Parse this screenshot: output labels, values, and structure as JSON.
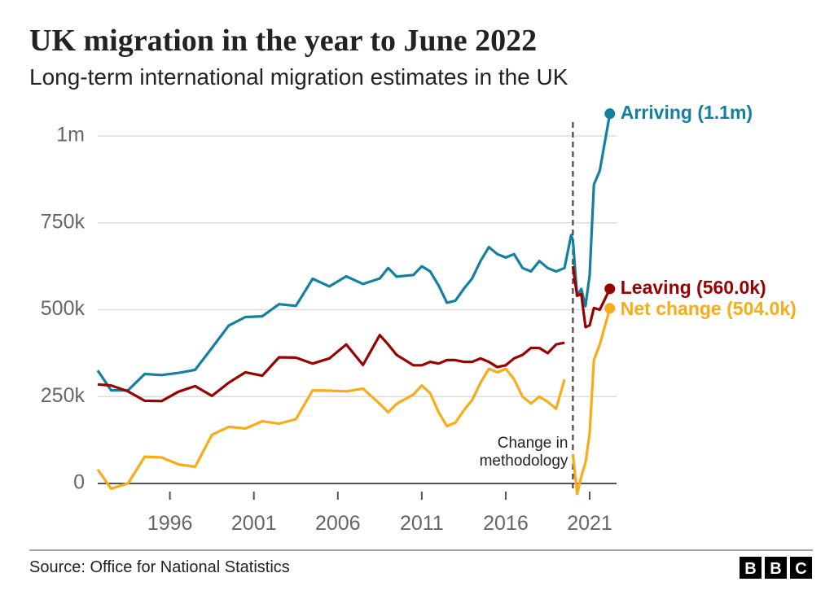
{
  "chart_data": {
    "type": "line",
    "title": "UK migration in the year to June 2022",
    "subtitle": "Long-term international migration estimates in the UK",
    "source": "Source: Office for National Statistics",
    "logo": [
      "B",
      "B",
      "C"
    ],
    "annotation": [
      "Change in",
      "methodology"
    ],
    "methodology_change_x": 2020.0,
    "xlim": [
      1991.7,
      2022.6
    ],
    "xticks": [
      1996,
      2001,
      2006,
      2011,
      2016,
      2021
    ],
    "ylim": [
      0,
      1000000
    ],
    "yticks": [
      {
        "value": 0,
        "label": "0"
      },
      {
        "value": 250000,
        "label": "250k"
      },
      {
        "value": 500000,
        "label": "500k"
      },
      {
        "value": 750000,
        "label": "750k"
      },
      {
        "value": 1000000,
        "label": "1m"
      }
    ],
    "grid": true,
    "x": [
      1991.7,
      1992.5,
      1993.5,
      1994.5,
      1995.5,
      1996.5,
      1997.5,
      1998.5,
      1999.5,
      2000.5,
      2001.5,
      2002.5,
      2003.5,
      2004.5,
      2005.5,
      2006.5,
      2007.5,
      2008.5,
      2009.0,
      2009.5,
      2010.5,
      2011.0,
      2011.5,
      2012.0,
      2012.5,
      2013.0,
      2013.5,
      2014.0,
      2014.5,
      2015.0,
      2015.5,
      2016.0,
      2016.5,
      2017.0,
      2017.5,
      2018.0,
      2018.5,
      2019.0,
      2019.5,
      2019.9,
      2020.0,
      2020.25,
      2020.5,
      2020.75,
      2021.0,
      2021.25,
      2021.6,
      2022.2
    ],
    "series": [
      {
        "name": "Arriving (1.1m)",
        "color": "#1380a1",
        "values": [
          325000,
          268000,
          268000,
          315000,
          312000,
          318000,
          327000,
          390000,
          454000,
          479000,
          481000,
          516000,
          511000,
          589000,
          567000,
          596000,
          574000,
          590000,
          620000,
          595000,
          600000,
          625000,
          610000,
          570000,
          520000,
          526000,
          560000,
          590000,
          640000,
          680000,
          660000,
          650000,
          660000,
          620000,
          610000,
          640000,
          620000,
          610000,
          620000,
          715000,
          700000,
          540000,
          560000,
          510000,
          600000,
          860000,
          900000,
          1064000
        ]
      },
      {
        "name": "Leaving (560.0k)",
        "color": "#990000",
        "values": [
          285000,
          282000,
          265000,
          238000,
          237000,
          264000,
          280000,
          252000,
          290000,
          320000,
          310000,
          363000,
          362000,
          345000,
          360000,
          400000,
          341000,
          427000,
          400000,
          370000,
          340000,
          340000,
          350000,
          345000,
          355000,
          355000,
          350000,
          350000,
          360000,
          350000,
          335000,
          340000,
          360000,
          370000,
          390000,
          390000,
          375000,
          400000,
          405000,
          null,
          625000,
          540000,
          545000,
          450000,
          455000,
          505000,
          500000,
          560000
        ]
      },
      {
        "name": "Net change (504.0k)",
        "color": "#faab18",
        "values": [
          40000,
          -15000,
          0,
          77000,
          75000,
          55000,
          48000,
          140000,
          163000,
          158000,
          179000,
          172000,
          185000,
          268000,
          267000,
          265000,
          273000,
          229000,
          205000,
          229000,
          256000,
          282000,
          260000,
          205000,
          165000,
          175000,
          210000,
          240000,
          290000,
          330000,
          320000,
          330000,
          300000,
          250000,
          230000,
          250000,
          235000,
          215000,
          300000,
          null,
          85000,
          -30000,
          20000,
          60000,
          145000,
          355000,
          400000,
          504000
        ]
      }
    ]
  }
}
